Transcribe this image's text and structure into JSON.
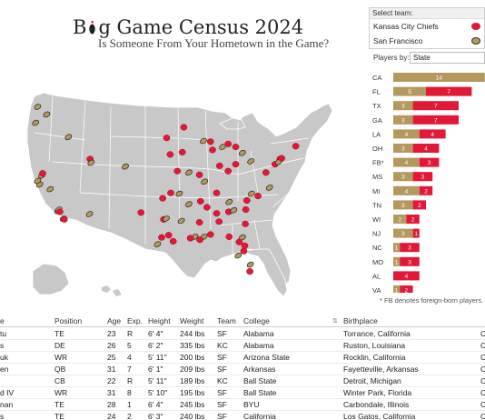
{
  "title": {
    "prefix": "B",
    "rest": "g Game Census 2024",
    "subtitle": "Is Someone From Your Hometown in the Game?"
  },
  "team_filter": {
    "header": "Select team:",
    "teams": [
      {
        "name": "Kansas City Chiefs",
        "color": "#e31837"
      },
      {
        "name": "San Francisco",
        "color": "#b3995d"
      }
    ]
  },
  "players_by": {
    "label": "Players by:",
    "value": "State",
    "icon": "chevron-down-icon"
  },
  "colors": {
    "kc": "#e31837",
    "sf": "#b3995d",
    "map_land": "#c8c8c8",
    "map_border": "#ffffff"
  },
  "chart_data": {
    "type": "bar",
    "orientation": "horizontal",
    "stacked": true,
    "categories": [
      "CA",
      "FL",
      "TX",
      "GA",
      "LA",
      "OH",
      "FB*",
      "MS",
      "MI",
      "TN",
      "WI",
      "NJ",
      "NC",
      "MO",
      "AL",
      "VA"
    ],
    "series": [
      {
        "name": "San Francisco",
        "values": [
          14,
          5,
          3,
          3,
          4,
          3,
          4,
          3,
          4,
          3,
          2,
          3,
          1,
          1,
          0,
          1
        ]
      },
      {
        "name": "Kansas City Chiefs",
        "values": [
          0,
          7,
          7,
          7,
          4,
          4,
          3,
          3,
          2,
          2,
          2,
          1,
          3,
          3,
          4,
          2
        ]
      }
    ],
    "value_labels": [
      [
        "14",
        ""
      ],
      [
        "5",
        "7"
      ],
      [
        "3",
        "7"
      ],
      [
        "3",
        "7"
      ],
      [
        "4",
        "4"
      ],
      [
        "3",
        "4"
      ],
      [
        "4",
        "3"
      ],
      [
        "3",
        "3"
      ],
      [
        "4",
        "2"
      ],
      [
        "3",
        "2"
      ],
      [
        "2",
        "2"
      ],
      [
        "3",
        "1"
      ],
      [
        "1",
        "3"
      ],
      [
        "1",
        "3"
      ],
      [
        "",
        "4"
      ],
      [
        "1",
        "2"
      ]
    ],
    "note": "* FB denotes foreign-born players."
  },
  "map_points": [
    {
      "t": "sf",
      "lon": -118.3,
      "lat": 33.8
    },
    {
      "t": "sf",
      "lon": -118.1,
      "lat": 34.0
    },
    {
      "t": "kc",
      "lon": -117.9,
      "lat": 33.7
    },
    {
      "t": "sf",
      "lon": -117.2,
      "lat": 32.8
    },
    {
      "t": "kc",
      "lon": -117.0,
      "lat": 32.7
    },
    {
      "t": "sf",
      "lon": -121.9,
      "lat": 37.3
    },
    {
      "t": "sf",
      "lon": -122.3,
      "lat": 37.8
    },
    {
      "t": "sf",
      "lon": -121.5,
      "lat": 38.5
    },
    {
      "t": "kc",
      "lon": -121.3,
      "lat": 38.8
    },
    {
      "t": "sf",
      "lon": -119.8,
      "lat": 36.7
    },
    {
      "t": "sf",
      "lon": -122.7,
      "lat": 45.5
    },
    {
      "t": "sf",
      "lon": -122.3,
      "lat": 47.6
    },
    {
      "t": "sf",
      "lon": -120.5,
      "lat": 46.6
    },
    {
      "t": "sf",
      "lon": -116.2,
      "lat": 43.6
    },
    {
      "t": "sf",
      "lon": -112.0,
      "lat": 33.4
    },
    {
      "t": "kc",
      "lon": -111.9,
      "lat": 40.7
    },
    {
      "t": "sf",
      "lon": -111.7,
      "lat": 40.2
    },
    {
      "t": "sf",
      "lon": -104.9,
      "lat": 39.7
    },
    {
      "t": "kc",
      "lon": -97.3,
      "lat": 32.7
    },
    {
      "t": "sf",
      "lon": -96.8,
      "lat": 32.8
    },
    {
      "t": "kc",
      "lon": -95.4,
      "lat": 29.8
    },
    {
      "t": "kc",
      "lon": -97.7,
      "lat": 30.3
    },
    {
      "t": "sf",
      "lon": -98.5,
      "lat": 29.4
    },
    {
      "t": "kc",
      "lon": -96.3,
      "lat": 30.6
    },
    {
      "t": "kc",
      "lon": -101.8,
      "lat": 33.6
    },
    {
      "t": "kc",
      "lon": -97.5,
      "lat": 35.5
    },
    {
      "t": "kc",
      "lon": -95.9,
      "lat": 36.2
    },
    {
      "t": "kc",
      "lon": -94.6,
      "lat": 39.1
    },
    {
      "t": "kc",
      "lon": -90.2,
      "lat": 38.6
    },
    {
      "t": "sf",
      "lon": -92.3,
      "lat": 38.9
    },
    {
      "t": "kc",
      "lon": -96.0,
      "lat": 41.3
    },
    {
      "t": "kc",
      "lon": -93.6,
      "lat": 41.6
    },
    {
      "t": "kc",
      "lon": -96.7,
      "lat": 43.5
    },
    {
      "t": "kc",
      "lon": -93.3,
      "lat": 44.9
    },
    {
      "t": "sf",
      "lon": -89.4,
      "lat": 43.1
    },
    {
      "t": "kc",
      "lon": -88.0,
      "lat": 43.0
    },
    {
      "t": "kc",
      "lon": -87.6,
      "lat": 41.9
    },
    {
      "t": "sf",
      "lon": -89.2,
      "lat": 37.7
    },
    {
      "t": "kc",
      "lon": -86.2,
      "lat": 39.8
    },
    {
      "t": "kc",
      "lon": -83.0,
      "lat": 42.3
    },
    {
      "t": "sf",
      "lon": -85.6,
      "lat": 42.3
    },
    {
      "t": "kc",
      "lon": -84.5,
      "lat": 42.7
    },
    {
      "t": "kc",
      "lon": -83.0,
      "lat": 40.0
    },
    {
      "t": "sf",
      "lon": -81.7,
      "lat": 41.5
    },
    {
      "t": "kc",
      "lon": -84.5,
      "lat": 39.1
    },
    {
      "t": "sf",
      "lon": -80.0,
      "lat": 40.4
    },
    {
      "t": "kc",
      "lon": -75.2,
      "lat": 40.0
    },
    {
      "t": "kc",
      "lon": -74.2,
      "lat": 40.7
    },
    {
      "t": "sf",
      "lon": -74.5,
      "lat": 40.3
    },
    {
      "t": "kc",
      "lon": -73.9,
      "lat": 40.8
    },
    {
      "t": "kc",
      "lon": -71.1,
      "lat": 42.4
    },
    {
      "t": "kc",
      "lon": -77.0,
      "lat": 38.9
    },
    {
      "t": "sf",
      "lon": -76.3,
      "lat": 36.9
    },
    {
      "t": "kc",
      "lon": -78.6,
      "lat": 35.8
    },
    {
      "t": "kc",
      "lon": -80.8,
      "lat": 35.2
    },
    {
      "t": "sf",
      "lon": -79.9,
      "lat": 36.1
    },
    {
      "t": "kc",
      "lon": -81.0,
      "lat": 34.0
    },
    {
      "t": "kc",
      "lon": -84.4,
      "lat": 33.7
    },
    {
      "t": "sf",
      "lon": -83.4,
      "lat": 33.9
    },
    {
      "t": "kc",
      "lon": -81.1,
      "lat": 32.1
    },
    {
      "t": "kc",
      "lon": -86.8,
      "lat": 36.2
    },
    {
      "t": "sf",
      "lon": -84.3,
      "lat": 35.0
    },
    {
      "t": "kc",
      "lon": -90.0,
      "lat": 35.1
    },
    {
      "t": "kc",
      "lon": -86.8,
      "lat": 33.5
    },
    {
      "t": "kc",
      "lon": -88.0,
      "lat": 30.7
    },
    {
      "t": "kc",
      "lon": -86.3,
      "lat": 32.4
    },
    {
      "t": "kc",
      "lon": -90.2,
      "lat": 32.3
    },
    {
      "t": "sf",
      "lon": -89.3,
      "lat": 30.4
    },
    {
      "t": "kc",
      "lon": -88.7,
      "lat": 34.3
    },
    {
      "t": "kc",
      "lon": -90.1,
      "lat": 30.0
    },
    {
      "t": "sf",
      "lon": -91.1,
      "lat": 30.4
    },
    {
      "t": "sf",
      "lon": -93.8,
      "lat": 32.5
    },
    {
      "t": "kc",
      "lon": -92.0,
      "lat": 30.2
    },
    {
      "t": "sf",
      "lon": -92.3,
      "lat": 34.7
    },
    {
      "t": "sf",
      "lon": -94.2,
      "lat": 36.1
    },
    {
      "t": "kc",
      "lon": -81.4,
      "lat": 28.5
    },
    {
      "t": "sf",
      "lon": -82.5,
      "lat": 27.9
    },
    {
      "t": "kc",
      "lon": -80.2,
      "lat": 25.8
    },
    {
      "t": "sf",
      "lon": -81.7,
      "lat": 30.3
    },
    {
      "t": "kc",
      "lon": -84.3,
      "lat": 30.4
    },
    {
      "t": "sf",
      "lon": -80.1,
      "lat": 26.7
    },
    {
      "t": "kc",
      "lon": -82.3,
      "lat": 29.7
    },
    {
      "t": "kc",
      "lon": -81.2,
      "lat": 29.2
    }
  ],
  "table": {
    "headers": {
      "name": "e",
      "position": "Position",
      "age": "Age",
      "exp": "Exp.",
      "height": "Height",
      "weight": "Weight",
      "team": "Team",
      "college": "College",
      "birthplace": "Birthplace"
    },
    "rows": [
      {
        "name": "tu",
        "pos": "TE",
        "age": "23",
        "exp": "R",
        "height": "6' 4''",
        "weight": "244 lbs",
        "team": "SF",
        "college": "Alabama",
        "birthplace": "Torrance, California",
        "end": "C"
      },
      {
        "name": "s",
        "pos": "DE",
        "age": "26",
        "exp": "5",
        "height": "6' 2''",
        "weight": "335 lbs",
        "team": "KC",
        "college": "Alabama",
        "birthplace": "Ruston, Louisiana",
        "end": "C"
      },
      {
        "name": "uk",
        "pos": "WR",
        "age": "25",
        "exp": "4",
        "height": "5' 11''",
        "weight": "200 lbs",
        "team": "SF",
        "college": "Arizona State",
        "birthplace": "Rocklin, California",
        "end": "C"
      },
      {
        "name": "en",
        "pos": "QB",
        "age": "31",
        "exp": "7",
        "height": "6' 1''",
        "weight": "209 lbs",
        "team": "SF",
        "college": "Arkansas",
        "birthplace": "Fayetteville, Arkansas",
        "end": "C"
      },
      {
        "name": "",
        "pos": "CB",
        "age": "22",
        "exp": "R",
        "height": "5' 11''",
        "weight": "189 lbs",
        "team": "KC",
        "college": "Ball State",
        "birthplace": "Detroit, Michigan",
        "end": "C"
      },
      {
        "name": "d IV",
        "pos": "WR",
        "age": "31",
        "exp": "8",
        "height": "5' 10''",
        "weight": "195 lbs",
        "team": "SF",
        "college": "Ball State",
        "birthplace": "Winter Park, Florida",
        "end": "C"
      },
      {
        "name": "nan",
        "pos": "TE",
        "age": "28",
        "exp": "1",
        "height": "6' 4''",
        "weight": "245 lbs",
        "team": "SF",
        "college": "BYU",
        "birthplace": "Carbondale, Illinois",
        "end": "C"
      },
      {
        "name": "s",
        "pos": "TE",
        "age": "24",
        "exp": "2",
        "height": "6' 3''",
        "weight": "240 lbs",
        "team": "SF",
        "college": "California",
        "birthplace": "Los Gatos, California",
        "end": "C"
      }
    ]
  }
}
